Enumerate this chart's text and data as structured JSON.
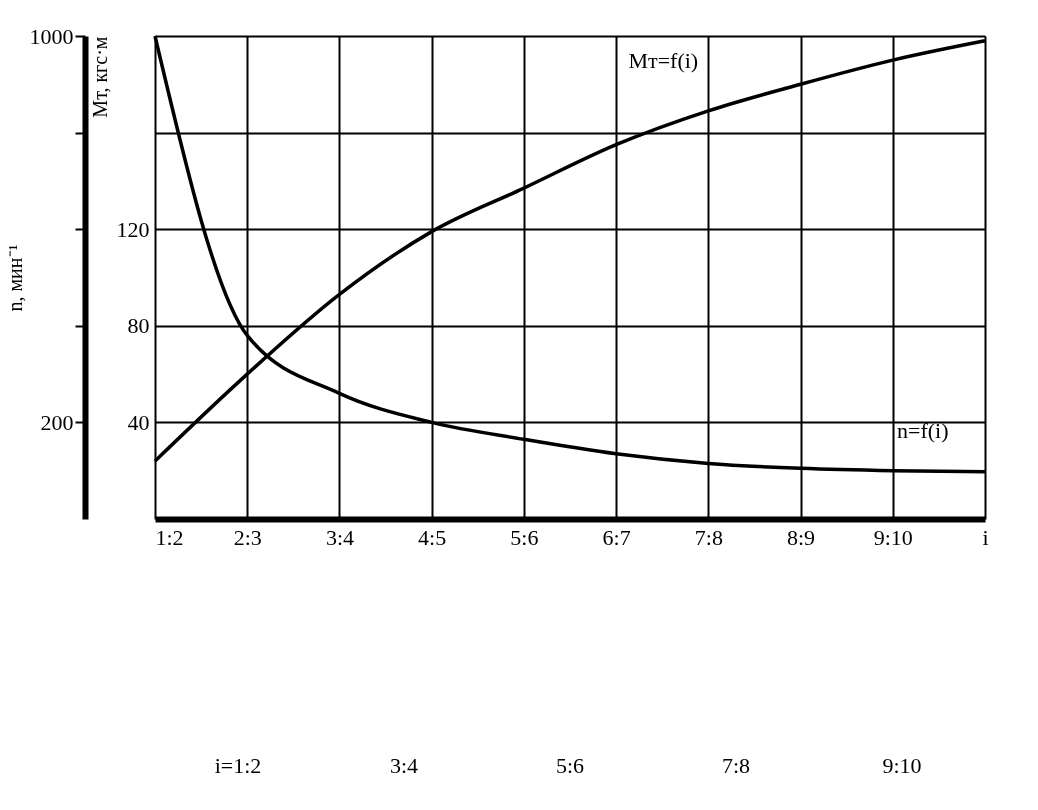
{
  "chart_data": {
    "type": "line",
    "xlabel": "i",
    "ylabel": "n, мин⁻¹",
    "y2label": "Mт, кгс·м",
    "categories": [
      "1:2",
      "2:3",
      "3:4",
      "4:5",
      "5:6",
      "6:7",
      "7:8",
      "8:9",
      "9:10",
      null
    ],
    "ylim": [
      0,
      1000
    ],
    "yticks": [
      {
        "value": 200,
        "label": "200"
      },
      {
        "value": 400,
        "label": null
      },
      {
        "value": 600,
        "label": null
      },
      {
        "value": 800,
        "label": null
      },
      1000
    ],
    "y2lim": [
      0,
      200
    ],
    "y2ticks": [
      40,
      80,
      120
    ],
    "grid": true,
    "marker": "none",
    "line_style": "solid",
    "series": [
      {
        "name": "n=f(i)",
        "color": "#000000",
        "values": [
          1000,
          380,
          260,
          200,
          165,
          135,
          115,
          105,
          100,
          98
        ]
      },
      {
        "name": "Mт=f(i)",
        "color": "#000000",
        "axis": "y2",
        "values": [
          24,
          60,
          93,
          119,
          137,
          155,
          169,
          180,
          190,
          198
        ]
      }
    ],
    "annotations": [
      "i=1:2",
      "3:4",
      "5:6",
      "7:8",
      "9:10"
    ]
  }
}
